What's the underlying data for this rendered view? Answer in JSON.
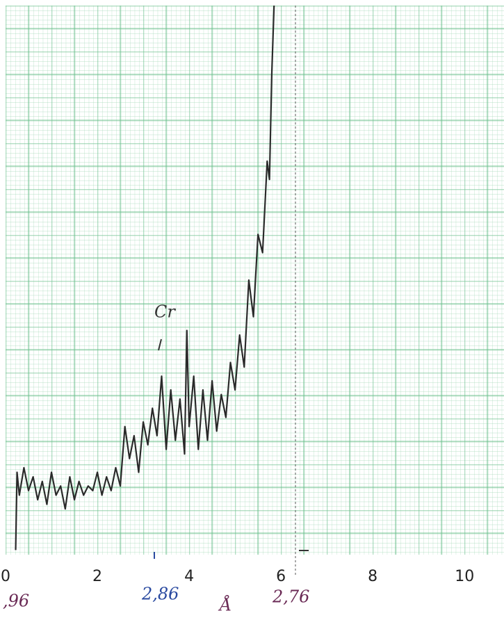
{
  "chart_data": {
    "type": "line",
    "x": [
      0.22,
      0.25,
      0.3,
      0.4,
      0.5,
      0.6,
      0.7,
      0.8,
      0.9,
      1.0,
      1.1,
      1.2,
      1.3,
      1.4,
      1.5,
      1.6,
      1.7,
      1.8,
      1.9,
      2.0,
      2.1,
      2.2,
      2.3,
      2.4,
      2.5,
      2.6,
      2.7,
      2.8,
      2.9,
      3.0,
      3.1,
      3.2,
      3.3,
      3.4,
      3.5,
      3.6,
      3.7,
      3.8,
      3.9,
      3.95,
      4.0,
      4.1,
      4.2,
      4.3,
      4.4,
      4.5,
      4.6,
      4.7,
      4.8,
      4.9,
      5.0,
      5.1,
      5.2,
      5.3,
      5.4,
      5.5,
      5.6,
      5.7,
      5.75,
      5.8,
      5.85
    ],
    "series": [
      {
        "color": "#2a2a2a",
        "values": [
          0.1,
          1.8,
          1.3,
          1.9,
          1.4,
          1.7,
          1.2,
          1.6,
          1.1,
          1.8,
          1.3,
          1.5,
          1.0,
          1.7,
          1.2,
          1.6,
          1.3,
          1.5,
          1.4,
          1.8,
          1.3,
          1.7,
          1.4,
          1.9,
          1.5,
          2.8,
          2.1,
          2.6,
          1.8,
          2.9,
          2.4,
          3.2,
          2.6,
          3.9,
          2.3,
          3.6,
          2.5,
          3.4,
          2.2,
          4.9,
          2.8,
          3.9,
          2.3,
          3.6,
          2.5,
          3.8,
          2.7,
          3.5,
          3.0,
          4.2,
          3.6,
          4.8,
          4.1,
          6.0,
          5.2,
          7.0,
          6.6,
          8.6,
          8.2,
          10.5,
          12.0
        ]
      }
    ],
    "xlim": [
      0,
      10.86
    ],
    "ylim": [
      0,
      12
    ],
    "xticks": [
      0,
      2,
      4,
      6,
      8,
      10
    ],
    "annotations": [
      "Cr",
      ",96",
      "2,86",
      "Å",
      "2,76"
    ]
  }
}
